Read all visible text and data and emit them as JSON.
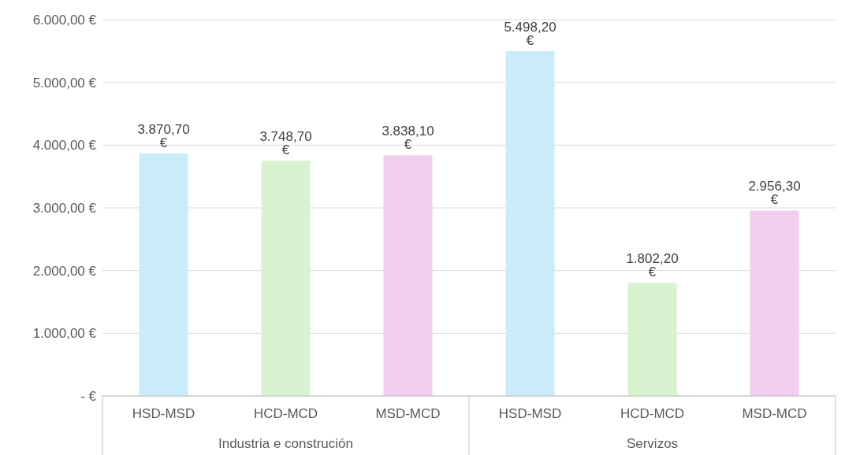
{
  "chart_data": {
    "type": "bar",
    "categories": [
      "HSD-MSD",
      "HCD-MCD",
      "MSD-MCD",
      "HSD-MSD",
      "HCD-MCD",
      "MSD-MCD"
    ],
    "values": [
      3870.7,
      3748.7,
      3838.1,
      5498.2,
      1802.2,
      2956.3
    ],
    "colors": [
      "#c9ecf8",
      "#d9f2d0",
      "#f1cdee",
      "#c9ecf8",
      "#d9f2d0",
      "#f1cdee"
    ],
    "value_labels": [
      "3.870,70 €",
      "3.748,70 €",
      "3.838,10 €",
      "5.498,20 €",
      "1.802,20 €",
      "2.956,30 €"
    ],
    "annotations": [
      "Industria e construción",
      "Servizos"
    ],
    "ylim": [
      0,
      6000
    ],
    "yticks": [
      {
        "value": 0,
        "label": "-  €"
      },
      {
        "value": 1000,
        "label": "1.000,00 €"
      },
      {
        "value": 2000,
        "label": "2.000,00 €"
      },
      {
        "value": 3000,
        "label": "3.000,00 €"
      },
      {
        "value": 4000,
        "label": "4.000,00 €"
      },
      {
        "value": 5000,
        "label": "5.000,00 €"
      },
      {
        "value": 6000,
        "label": "6.000,00 €"
      }
    ],
    "grid": "y"
  }
}
